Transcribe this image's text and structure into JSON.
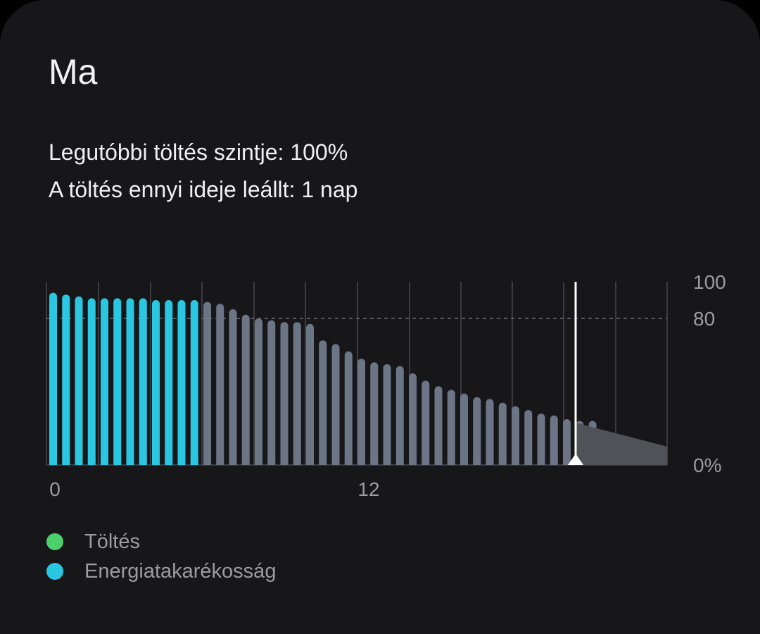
{
  "title": "Ma",
  "info": {
    "last_charge_level": "Legutóbbi töltés szintje: 100%",
    "charge_duration": "A töltés ennyi ideje leállt: 1 nap"
  },
  "colors": {
    "power_saving": "#29c7e1",
    "normal": "#6c7585",
    "charging": "#4cd06c",
    "projection": "#505258"
  },
  "chart_data": {
    "type": "bar",
    "x_start": 0,
    "x_mark": 12,
    "x_tick_labels": [
      "0",
      "12"
    ],
    "y_tick_labels": [
      "100",
      "80",
      "0%"
    ],
    "ylim": [
      0,
      100
    ],
    "reference_line": 80,
    "series": [
      {
        "name": "Energiatakarékosság",
        "values": [
          94,
          93,
          92,
          91,
          91,
          91,
          91,
          91,
          90,
          90,
          90,
          90
        ]
      },
      {
        "name": "",
        "values": [
          89,
          88,
          85,
          82,
          80,
          79,
          78,
          78,
          77,
          68,
          66,
          62,
          58,
          56,
          55,
          54,
          50,
          46,
          43,
          41,
          39,
          37,
          36,
          34,
          32,
          30,
          28,
          27,
          25,
          24,
          24
        ]
      }
    ],
    "projection": {
      "from": 23,
      "to": 10
    },
    "current_marker_label": "now"
  },
  "legend": {
    "items": [
      {
        "label": "Töltés",
        "color": "#4cd06c"
      },
      {
        "label": "Energiatakarékosság",
        "color": "#29c7e1"
      }
    ]
  }
}
